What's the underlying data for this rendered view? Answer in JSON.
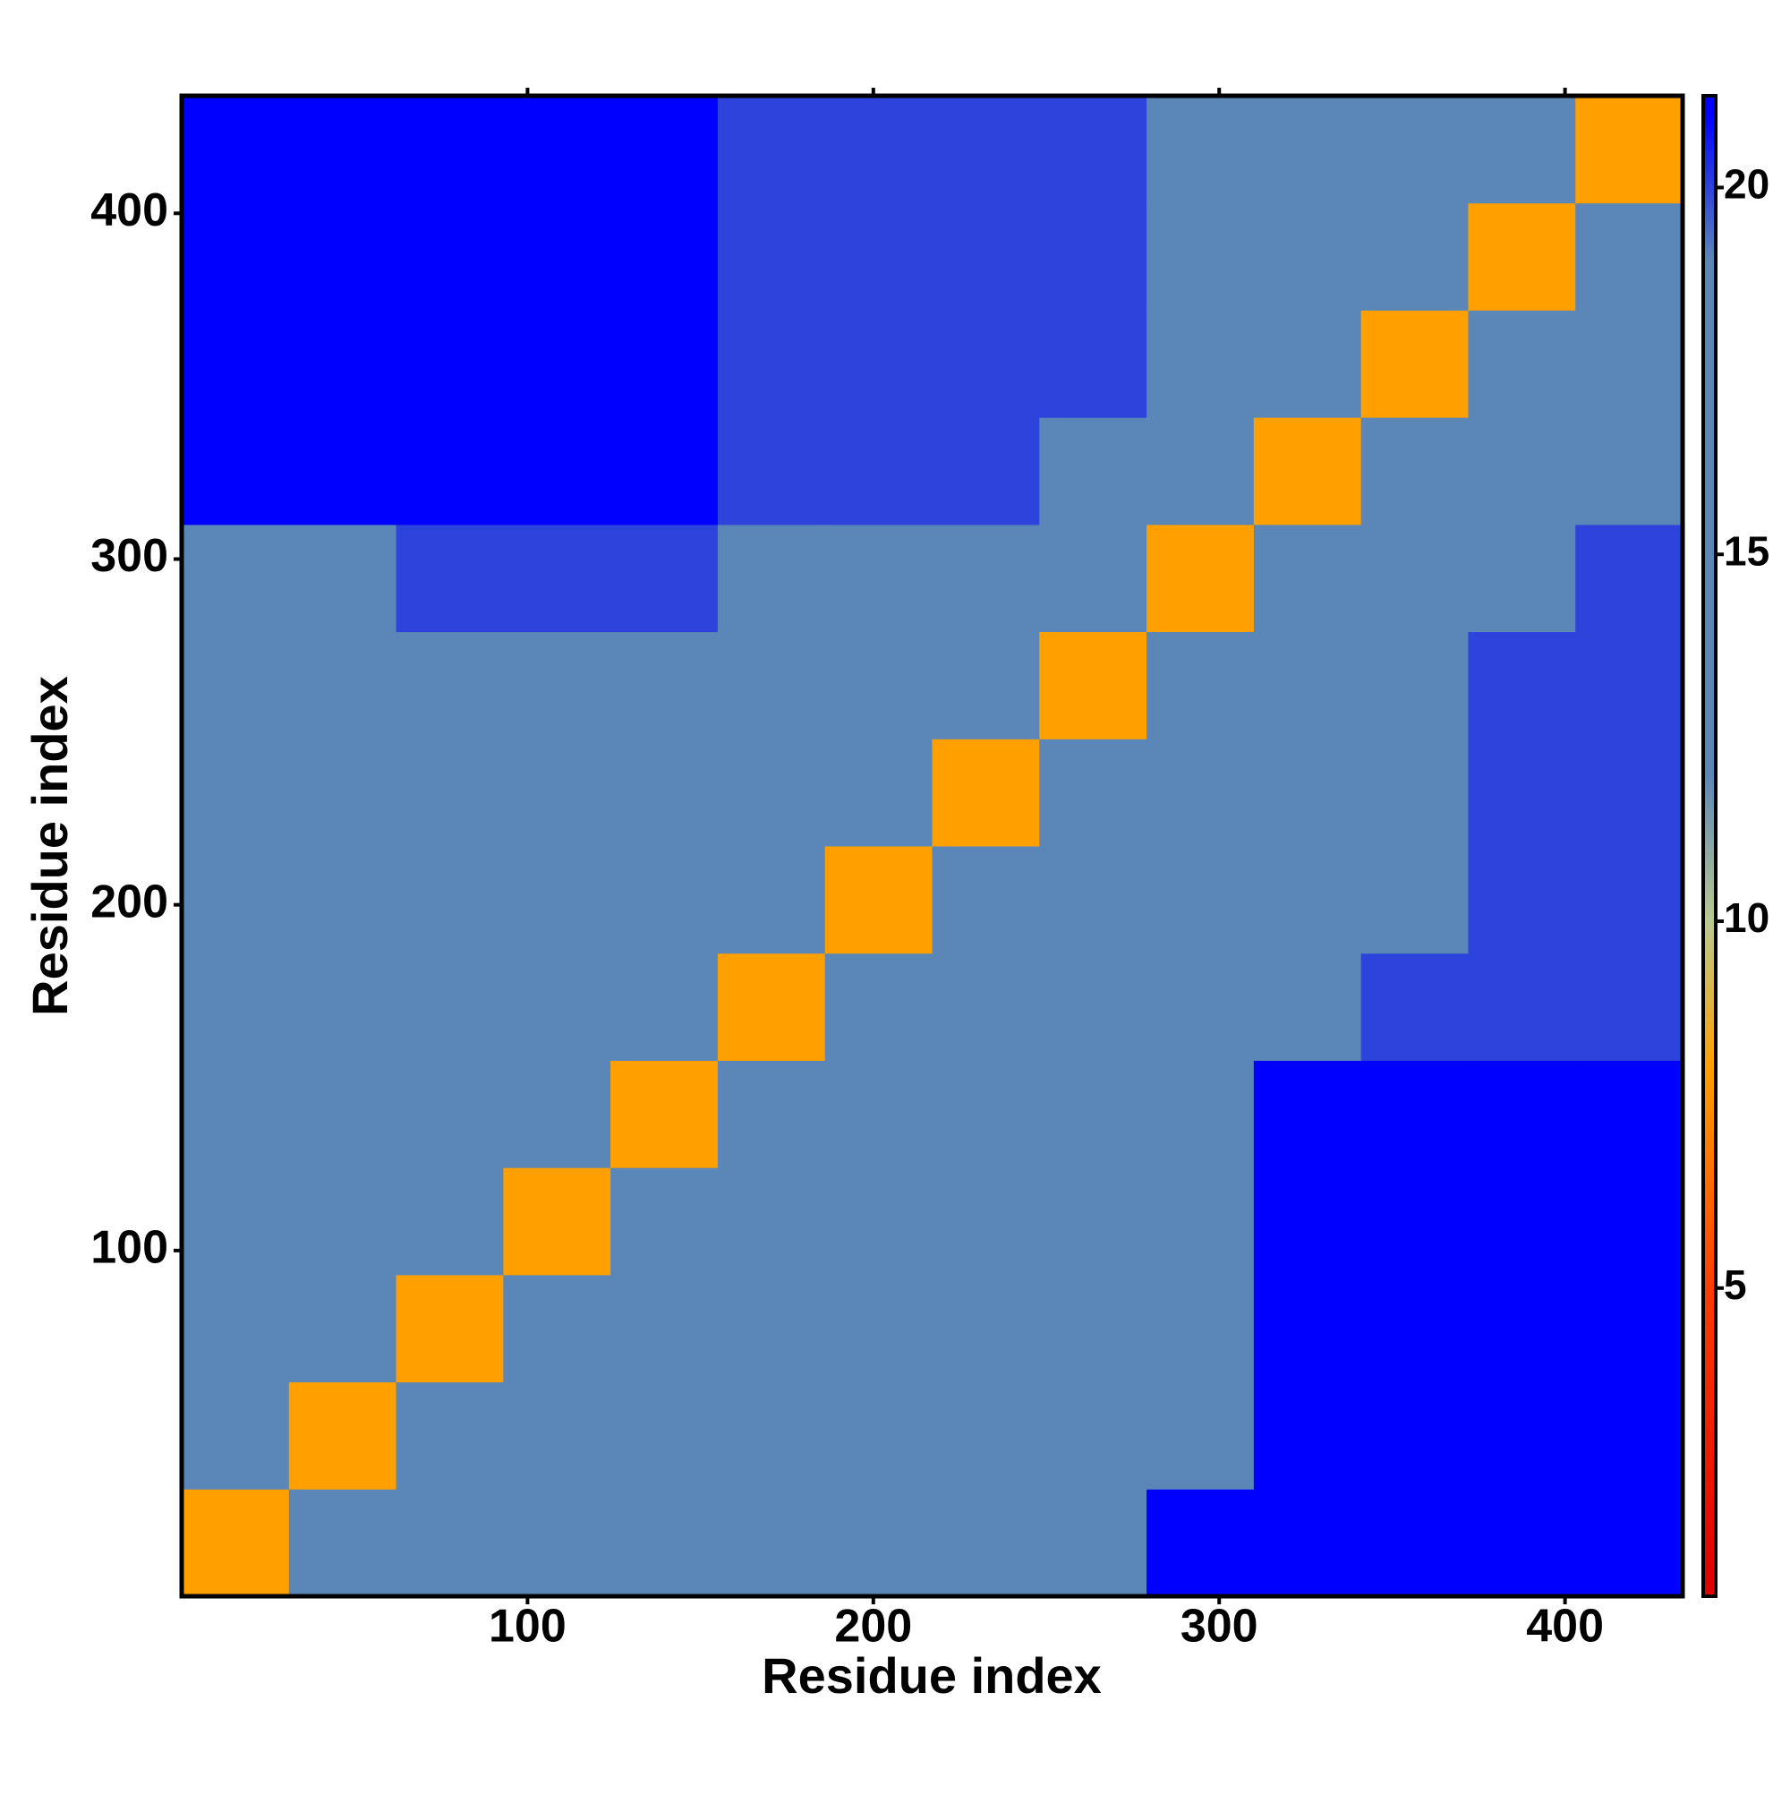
{
  "chart_data": {
    "type": "heatmap",
    "x_label": "Residue index",
    "y_label": "Residue index",
    "xbins": [
      0,
      31,
      62,
      93,
      124,
      155,
      186,
      217,
      248,
      279,
      310,
      341,
      372,
      403,
      434
    ],
    "ybins": [
      0,
      31,
      62,
      93,
      124,
      155,
      186,
      217,
      248,
      279,
      310,
      341,
      372,
      403,
      434
    ],
    "xlim": [
      0,
      434
    ],
    "ylim": [
      0,
      434
    ],
    "xticks": [
      100,
      200,
      300,
      400
    ],
    "yticks": [
      100,
      200,
      300,
      400
    ],
    "z": [
      [
        8,
        14,
        19,
        19,
        19,
        19,
        19,
        19,
        19,
        21,
        22,
        22,
        22,
        22
      ],
      [
        14,
        8,
        14,
        16,
        16,
        16,
        16,
        16,
        16,
        18,
        22,
        22,
        22,
        22
      ],
      [
        19,
        14,
        8,
        14,
        16,
        16,
        16,
        16,
        16,
        18,
        22,
        22,
        22,
        22
      ],
      [
        19,
        16,
        14,
        8,
        14,
        16,
        16,
        16,
        16,
        18,
        22,
        22,
        22,
        22
      ],
      [
        19,
        16,
        16,
        14,
        8,
        14,
        16,
        16,
        16,
        18,
        21,
        21,
        21,
        21
      ],
      [
        19,
        16,
        16,
        16,
        14,
        8,
        14,
        16,
        16,
        17,
        19,
        20,
        20,
        20
      ],
      [
        19,
        16,
        16,
        16,
        16,
        14,
        8,
        14,
        16,
        17,
        18,
        19,
        20,
        20
      ],
      [
        19,
        16,
        16,
        16,
        16,
        16,
        14,
        8,
        14,
        16,
        17,
        19,
        20,
        20
      ],
      [
        19,
        16,
        16,
        16,
        16,
        16,
        16,
        14,
        8,
        14,
        17,
        19,
        20,
        20
      ],
      [
        19,
        19,
        20,
        20,
        20,
        19,
        18,
        17,
        14,
        8,
        14,
        18,
        19,
        20
      ],
      [
        22,
        22,
        22,
        22,
        22,
        20,
        20,
        20,
        19,
        14,
        8,
        14,
        16,
        17
      ],
      [
        22,
        22,
        22,
        22,
        21,
        20,
        20,
        20,
        20,
        18,
        14,
        8,
        14,
        16
      ],
      [
        22,
        22,
        22,
        22,
        21,
        20,
        20,
        20,
        20,
        19,
        16,
        14,
        8,
        14
      ],
      [
        22,
        22,
        22,
        22,
        21,
        20,
        20,
        20,
        20,
        19,
        16,
        16,
        14,
        8
      ]
    ],
    "colorscale": [
      {
        "value": 1,
        "color": "#e00000"
      },
      {
        "value": 5,
        "color": "#ff3c00"
      },
      {
        "value": 8,
        "color": "#ffa000"
      },
      {
        "value": 10,
        "color": "#b9c98f"
      },
      {
        "value": 12,
        "color": "#5b86b8"
      },
      {
        "value": 19,
        "color": "#5b86b8"
      },
      {
        "value": 21,
        "color": "#0000ff"
      }
    ],
    "colorbar_lim": [
      0.8,
      21.25
    ],
    "colorbar_ticks": [
      5,
      10,
      15,
      20
    ]
  }
}
